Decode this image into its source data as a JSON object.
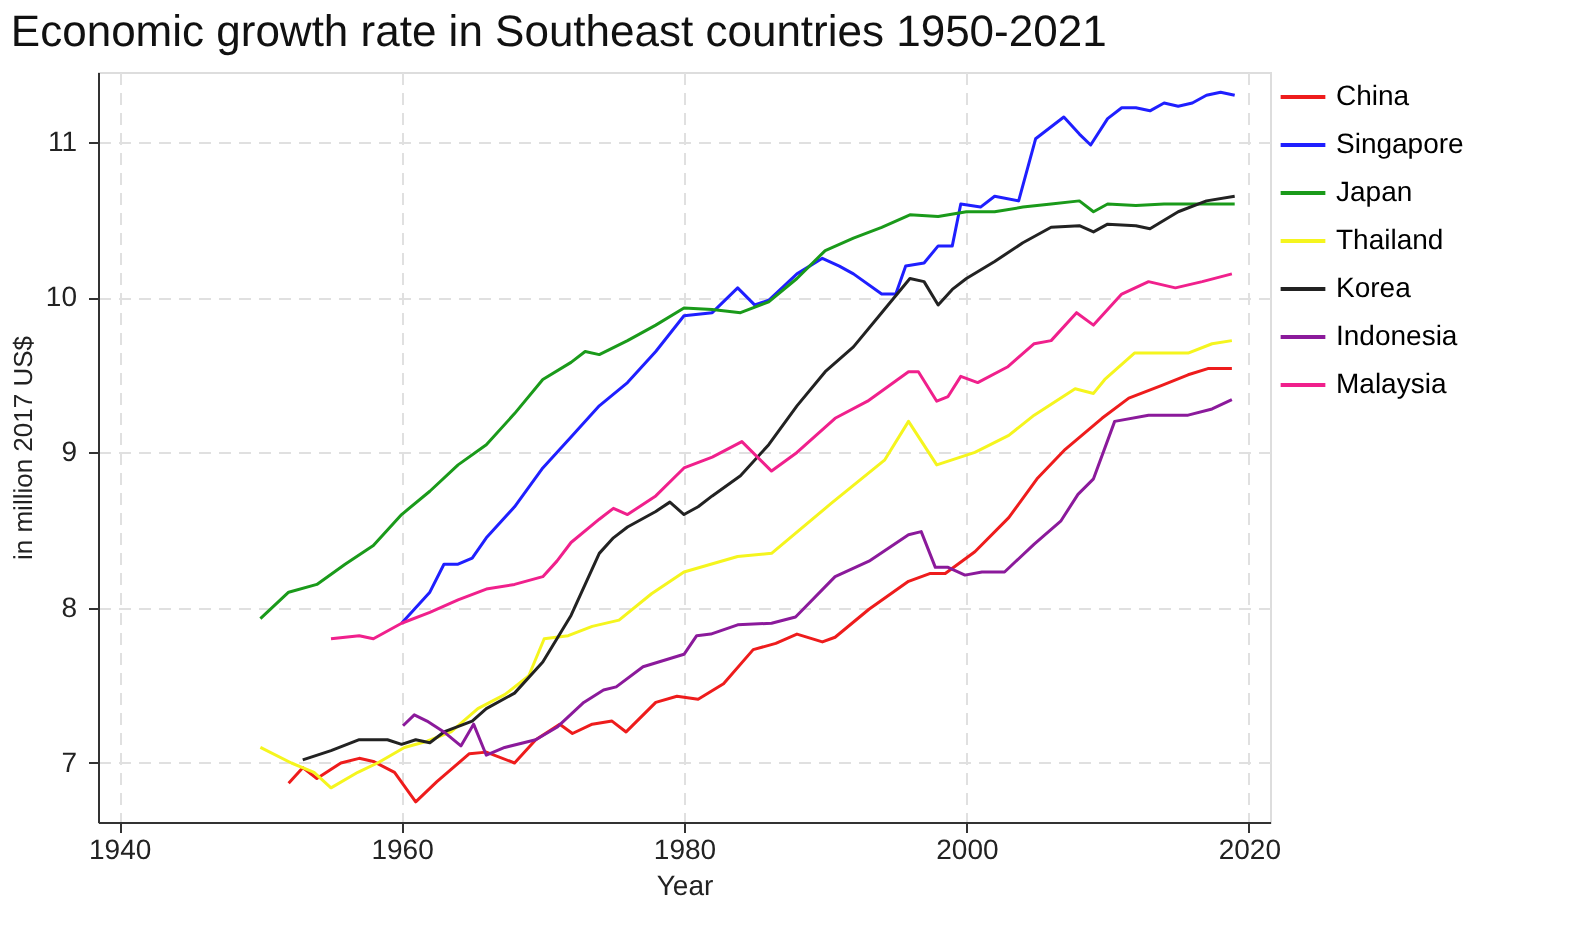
{
  "chart_data": {
    "type": "line",
    "title": "Economic growth rate in Southeast countries 1950-2021",
    "xlabel": "Year",
    "ylabel": "in million 2017 US$",
    "xlim": [
      1938.5,
      2021.5
    ],
    "xticks": [
      1940,
      1960,
      1980,
      2000,
      2020
    ],
    "ylim": [
      6.62,
      11.45
    ],
    "yticks": [
      7,
      8,
      9,
      10,
      11
    ],
    "grid": true,
    "legend": "right",
    "marker": "none",
    "line_style": "solid",
    "series": [
      {
        "name": "China",
        "color": "#ee1c1c",
        "x": [
          1952,
          1953,
          1954,
          1955.7,
          1957,
          1958,
          1959.5,
          1961,
          1962.5,
          1964.8,
          1966,
          1968,
          1969.5,
          1971.2,
          1972.1,
          1973.5,
          1974.9,
          1975.9,
          1978,
          1979.5,
          1981,
          1982.8,
          1984.9,
          1986.5,
          1988,
          1989.8,
          1990.7,
          1993.1,
          1995.9,
          1997.4,
          1998.5,
          2000.6,
          2003,
          2005,
          2007,
          2009.6,
          2011.5,
          2013.8,
          2015.7,
          2017.1,
          2018.8
        ],
        "values": [
          6.87,
          6.97,
          6.9,
          7.0,
          7.03,
          7.01,
          6.94,
          6.75,
          6.88,
          7.06,
          7.07,
          7.0,
          7.15,
          7.25,
          7.19,
          7.25,
          7.27,
          7.2,
          7.39,
          7.43,
          7.41,
          7.51,
          7.73,
          7.77,
          7.83,
          7.78,
          7.81,
          7.99,
          8.17,
          8.22,
          8.22,
          8.36,
          8.58,
          8.83,
          9.02,
          9.22,
          9.35,
          9.43,
          9.5,
          9.54,
          9.54
        ]
      },
      {
        "name": "Singapore",
        "color": "#1f1fff",
        "x": [
          1960,
          1962,
          1963,
          1964,
          1965,
          1966,
          1968,
          1970,
          1972,
          1974,
          1976,
          1978,
          1980,
          1982,
          1983.8,
          1985,
          1986,
          1988,
          1989.8,
          1991,
          1992,
          1994,
          1995,
          1995.7,
          1997,
          1998,
          1999,
          1999.6,
          2001,
          2002,
          2003.7,
          2004.9,
          2006.9,
          2008,
          2008.8,
          2010,
          2011,
          2012,
          2013,
          2014,
          2015,
          2016,
          2017,
          2018,
          2019
        ],
        "values": [
          7.9,
          8.1,
          8.28,
          8.28,
          8.32,
          8.45,
          8.65,
          8.9,
          9.1,
          9.3,
          9.45,
          9.65,
          9.88,
          9.9,
          10.06,
          9.95,
          9.98,
          10.15,
          10.25,
          10.2,
          10.15,
          10.02,
          10.02,
          10.2,
          10.22,
          10.33,
          10.33,
          10.6,
          10.58,
          10.65,
          10.62,
          11.02,
          11.16,
          11.05,
          10.98,
          11.15,
          11.22,
          11.22,
          11.2,
          11.25,
          11.23,
          11.25,
          11.3,
          11.32,
          11.3
        ]
      },
      {
        "name": "Japan",
        "color": "#1a9a1a",
        "x": [
          1950,
          1952,
          1954,
          1956,
          1958,
          1960,
          1962,
          1964,
          1966,
          1968,
          1970,
          1972,
          1973,
          1974,
          1976,
          1978,
          1980,
          1982,
          1984,
          1986,
          1988,
          1990,
          1992,
          1994,
          1996,
          1998,
          2000,
          2002,
          2004,
          2006,
          2008,
          2009,
          2010,
          2012,
          2014,
          2016,
          2019
        ],
        "values": [
          7.93,
          8.1,
          8.15,
          8.28,
          8.4,
          8.6,
          8.75,
          8.92,
          9.05,
          9.25,
          9.47,
          9.58,
          9.65,
          9.63,
          9.72,
          9.82,
          9.93,
          9.92,
          9.9,
          9.97,
          10.12,
          10.3,
          10.38,
          10.45,
          10.53,
          10.52,
          10.55,
          10.55,
          10.58,
          10.6,
          10.62,
          10.55,
          10.6,
          10.59,
          10.6,
          10.6,
          10.6
        ]
      },
      {
        "name": "Thailand",
        "color": "#f5f51e",
        "x": [
          1950,
          1952.2,
          1953.8,
          1955,
          1956.9,
          1958.3,
          1960.2,
          1961.8,
          1963.5,
          1965.4,
          1967.3,
          1969,
          1970.1,
          1971.8,
          1973.5,
          1975.4,
          1977.7,
          1980,
          1983.8,
          1986.2,
          1990.4,
          1994.2,
          1995.9,
          1997.9,
          2000.6,
          2003,
          2004.8,
          2007.7,
          2009,
          2009.8,
          2011.9,
          2014.3,
          2015.7,
          2017.4,
          2018.8
        ],
        "values": [
          7.1,
          7.0,
          6.94,
          6.84,
          6.94,
          7.0,
          7.1,
          7.14,
          7.2,
          7.35,
          7.44,
          7.56,
          7.8,
          7.82,
          7.88,
          7.92,
          8.09,
          8.23,
          8.33,
          8.35,
          8.67,
          8.95,
          9.2,
          8.92,
          9.0,
          9.11,
          9.24,
          9.41,
          9.38,
          9.47,
          9.64,
          9.64,
          9.64,
          9.7,
          9.72
        ]
      },
      {
        "name": "Korea",
        "color": "#222222",
        "x": [
          1953,
          1955,
          1957,
          1959,
          1960,
          1961,
          1962,
          1963,
          1965,
          1966,
          1968,
          1970,
          1972,
          1973,
          1974,
          1975,
          1976,
          1978,
          1979,
          1980,
          1981,
          1982,
          1984,
          1986,
          1988,
          1990,
          1992,
          1994,
          1996,
          1997,
          1998,
          1999,
          2000,
          2002,
          2004,
          2006,
          2008,
          2009,
          2010,
          2012,
          2013,
          2015,
          2017,
          2019
        ],
        "values": [
          7.02,
          7.08,
          7.15,
          7.15,
          7.12,
          7.15,
          7.13,
          7.2,
          7.27,
          7.35,
          7.45,
          7.65,
          7.95,
          8.15,
          8.35,
          8.45,
          8.52,
          8.62,
          8.68,
          8.6,
          8.65,
          8.72,
          8.85,
          9.05,
          9.3,
          9.52,
          9.68,
          9.9,
          10.12,
          10.1,
          9.95,
          10.05,
          10.12,
          10.23,
          10.35,
          10.45,
          10.46,
          10.42,
          10.47,
          10.46,
          10.44,
          10.55,
          10.62,
          10.65
        ]
      },
      {
        "name": "Indonesia",
        "color": "#8b1a9b",
        "x": [
          1960.1,
          1960.9,
          1961.8,
          1963,
          1964.2,
          1965.1,
          1966,
          1967.3,
          1969.5,
          1971,
          1972.9,
          1974.3,
          1975.2,
          1977.1,
          1980,
          1980.9,
          1981.9,
          1983.8,
          1986.2,
          1987.9,
          1990.7,
          1993.1,
          1995.9,
          1996.8,
          1997.8,
          1998.7,
          1999.9,
          2001.1,
          2002.7,
          2004.8,
          2006.7,
          2007.9,
          2009,
          2010.5,
          2012.9,
          2015.7,
          2017.4,
          2018.8
        ],
        "values": [
          7.24,
          7.31,
          7.27,
          7.2,
          7.11,
          7.25,
          7.05,
          7.1,
          7.15,
          7.23,
          7.39,
          7.47,
          7.49,
          7.62,
          7.7,
          7.82,
          7.83,
          7.89,
          7.9,
          7.94,
          8.2,
          8.3,
          8.47,
          8.49,
          8.26,
          8.26,
          8.21,
          8.23,
          8.23,
          8.41,
          8.56,
          8.73,
          8.83,
          9.2,
          9.24,
          9.24,
          9.28,
          9.34
        ]
      },
      {
        "name": "Malaysia",
        "color": "#f0208c",
        "x": [
          1955,
          1957,
          1958,
          1960,
          1962,
          1964,
          1966,
          1968,
          1970,
          1971,
          1972,
          1974,
          1975,
          1976,
          1978,
          1980,
          1982,
          1984.1,
          1986.2,
          1988,
          1990.7,
          1993,
          1995.9,
          1996.6,
          1997.9,
          1998.7,
          1999.6,
          2000.8,
          2002.9,
          2004.8,
          2006,
          2007.8,
          2009,
          2011,
          2012.9,
          2014.8,
          2016.7,
          2018.8
        ],
        "values": [
          7.8,
          7.82,
          7.8,
          7.9,
          7.97,
          8.05,
          8.12,
          8.15,
          8.2,
          8.3,
          8.42,
          8.57,
          8.64,
          8.6,
          8.72,
          8.9,
          8.97,
          9.07,
          8.88,
          9.0,
          9.22,
          9.33,
          9.52,
          9.52,
          9.33,
          9.36,
          9.49,
          9.45,
          9.55,
          9.7,
          9.72,
          9.9,
          9.82,
          10.02,
          10.1,
          10.06,
          10.1,
          10.15
        ]
      }
    ]
  }
}
